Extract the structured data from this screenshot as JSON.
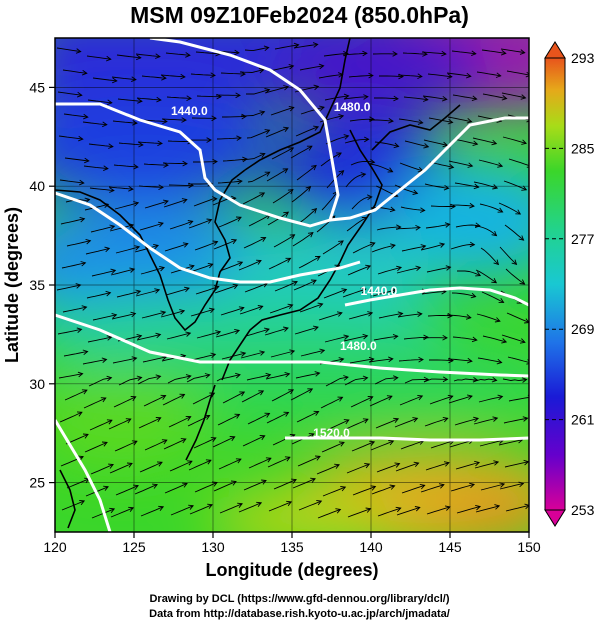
{
  "title": "MSM 09Z10Feb2024 (850.0hPa)",
  "footer": {
    "line1": "Drawing by DCL (https://www.gfd-dennou.org/library/dcl/)",
    "line2": "Data from http://database.rish.kyoto-u.ac.jp/arch/jmadata/"
  },
  "map": {
    "xlabel": "Longitude (degrees)",
    "ylabel": "Latitude  (degrees)",
    "xlim": [
      120,
      150
    ],
    "ylim": [
      22.5,
      47.5
    ],
    "xticks": [
      "120",
      "125",
      "130",
      "135",
      "140",
      "145",
      "150"
    ],
    "yticks": [
      "25",
      "30",
      "35",
      "40",
      "45"
    ],
    "contour_labels": [
      {
        "text": "1440.0",
        "lon": 128.5,
        "lat": 43.6
      },
      {
        "text": "1480.0",
        "lon": 138.8,
        "lat": 43.8
      },
      {
        "text": "1440.0",
        "lon": 140.5,
        "lat": 34.5
      },
      {
        "text": "1480.0",
        "lon": 139.2,
        "lat": 31.7
      },
      {
        "text": "1520.0",
        "lon": 137.5,
        "lat": 27.3
      }
    ]
  },
  "colorbar": {
    "ticks": [
      "293",
      "285",
      "277",
      "269",
      "261",
      "253"
    ],
    "range": [
      253,
      293
    ]
  },
  "colors": {
    "stops": [
      "#d80098",
      "#6600cc",
      "#1a1ad6",
      "#1f73e8",
      "#19c8d2",
      "#22d38c",
      "#3bd62a",
      "#a8dc18",
      "#e6a81a",
      "#e8541c"
    ]
  }
}
